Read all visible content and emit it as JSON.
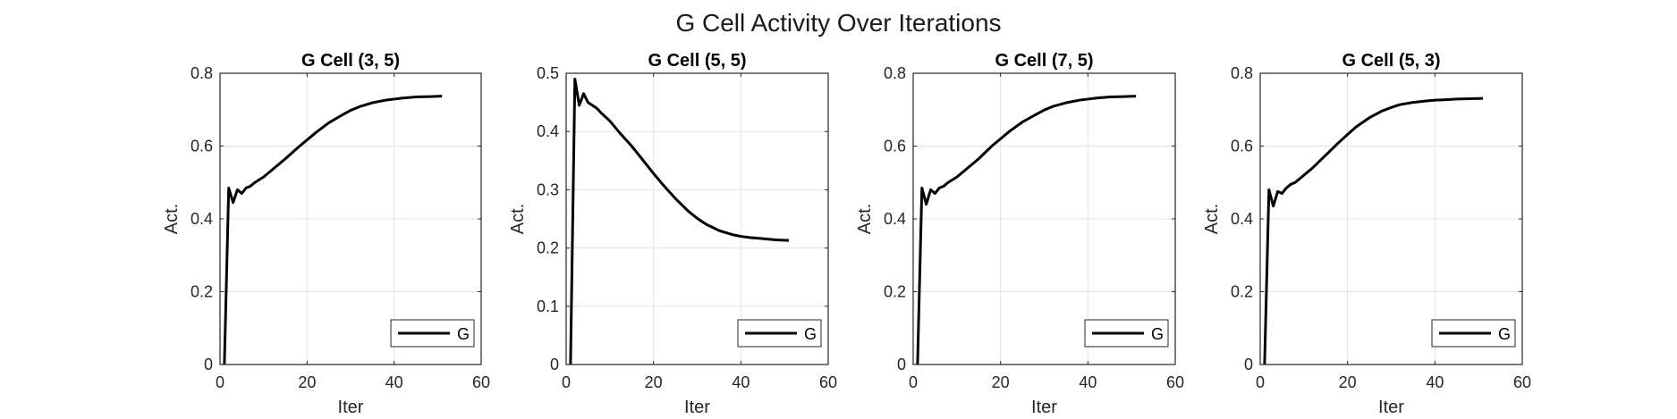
{
  "figure": {
    "title": "G Cell Activity Over Iterations"
  },
  "chart_data": [
    {
      "type": "line",
      "title": "G Cell (3, 5)",
      "xlabel": "Iter",
      "ylabel": "Act.",
      "xlim": [
        0,
        60
      ],
      "ylim": [
        0,
        0.8
      ],
      "xticks": [
        "0",
        "20",
        "40",
        "60"
      ],
      "yticks": [
        "0",
        "0.2",
        "0.4",
        "0.6",
        "0.8"
      ],
      "grid": true,
      "legend_position": "bottom-right",
      "series": [
        {
          "name": "G",
          "color": "#000000",
          "x": [
            1,
            2,
            3,
            4,
            5,
            6,
            7,
            8,
            10,
            12,
            15,
            18,
            20,
            22,
            25,
            28,
            30,
            32,
            35,
            38,
            40,
            42,
            45,
            48,
            51
          ],
          "y": [
            0,
            0.485,
            0.445,
            0.48,
            0.47,
            0.485,
            0.49,
            0.5,
            0.515,
            0.535,
            0.565,
            0.597,
            0.617,
            0.637,
            0.664,
            0.685,
            0.698,
            0.708,
            0.719,
            0.726,
            0.729,
            0.732,
            0.735,
            0.736,
            0.737
          ]
        }
      ]
    },
    {
      "type": "line",
      "title": "G Cell (5, 5)",
      "xlabel": "Iter",
      "ylabel": "Act.",
      "xlim": [
        0,
        60
      ],
      "ylim": [
        0,
        0.5
      ],
      "xticks": [
        "0",
        "20",
        "40",
        "60"
      ],
      "yticks": [
        "0",
        "0.1",
        "0.2",
        "0.3",
        "0.4",
        "0.5"
      ],
      "grid": true,
      "legend_position": "bottom-right",
      "series": [
        {
          "name": "G",
          "color": "#000000",
          "x": [
            1,
            2,
            3,
            4,
            5,
            6,
            7,
            8,
            10,
            12,
            15,
            18,
            20,
            22,
            25,
            28,
            30,
            32,
            35,
            38,
            40,
            42,
            45,
            48,
            51
          ],
          "y": [
            0,
            0.49,
            0.445,
            0.465,
            0.45,
            0.445,
            0.44,
            0.432,
            0.418,
            0.4,
            0.375,
            0.347,
            0.328,
            0.31,
            0.285,
            0.263,
            0.251,
            0.241,
            0.23,
            0.223,
            0.22,
            0.218,
            0.216,
            0.214,
            0.213
          ]
        }
      ]
    },
    {
      "type": "line",
      "title": "G Cell (7, 5)",
      "xlabel": "Iter",
      "ylabel": "Act.",
      "xlim": [
        0,
        60
      ],
      "ylim": [
        0,
        0.8
      ],
      "xticks": [
        "0",
        "20",
        "40",
        "60"
      ],
      "yticks": [
        "0",
        "0.2",
        "0.4",
        "0.6",
        "0.8"
      ],
      "grid": true,
      "legend_position": "bottom-right",
      "series": [
        {
          "name": "G",
          "color": "#000000",
          "x": [
            1,
            2,
            3,
            4,
            5,
            6,
            7,
            8,
            10,
            12,
            15,
            18,
            20,
            22,
            25,
            28,
            30,
            32,
            35,
            38,
            40,
            42,
            45,
            48,
            51
          ],
          "y": [
            0,
            0.485,
            0.44,
            0.48,
            0.47,
            0.485,
            0.49,
            0.5,
            0.515,
            0.535,
            0.565,
            0.6,
            0.62,
            0.64,
            0.666,
            0.686,
            0.699,
            0.709,
            0.719,
            0.726,
            0.729,
            0.732,
            0.735,
            0.736,
            0.737
          ]
        }
      ]
    },
    {
      "type": "line",
      "title": "G Cell (5, 3)",
      "xlabel": "Iter",
      "ylabel": "Act.",
      "xlim": [
        0,
        60
      ],
      "ylim": [
        0,
        0.8
      ],
      "xticks": [
        "0",
        "20",
        "40",
        "60"
      ],
      "yticks": [
        "0",
        "0.2",
        "0.4",
        "0.6",
        "0.8"
      ],
      "grid": true,
      "legend_position": "bottom-right",
      "series": [
        {
          "name": "G",
          "color": "#000000",
          "x": [
            1,
            2,
            3,
            4,
            5,
            6,
            7,
            8,
            10,
            12,
            15,
            18,
            20,
            22,
            25,
            28,
            30,
            32,
            35,
            38,
            40,
            42,
            45,
            48,
            51
          ],
          "y": [
            0,
            0.48,
            0.435,
            0.475,
            0.47,
            0.485,
            0.495,
            0.5,
            0.52,
            0.54,
            0.575,
            0.61,
            0.632,
            0.653,
            0.678,
            0.697,
            0.706,
            0.714,
            0.72,
            0.724,
            0.726,
            0.727,
            0.729,
            0.73,
            0.731
          ]
        }
      ]
    }
  ]
}
